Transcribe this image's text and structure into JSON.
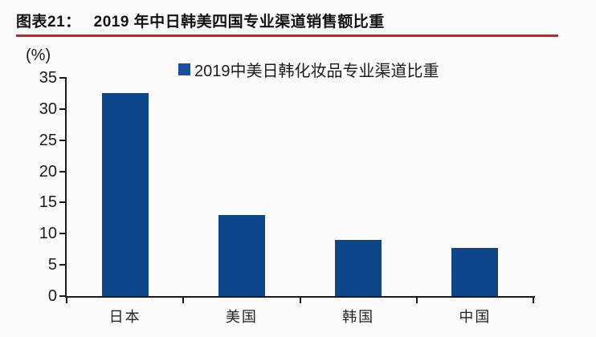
{
  "header": {
    "figure_label": "图表21：",
    "title": "2019 年中日韩美四国专业渠道销售额比重"
  },
  "colors": {
    "bar": "#0E4789",
    "swatch": "#1A4E9E",
    "rule": "#C8241C",
    "axis": "#1A1A1A"
  },
  "chart_data": {
    "type": "bar",
    "title": "2019 年中日韩美四国专业渠道销售额比重",
    "legend": "2019中美日韩化妆品专业渠道比重",
    "unit_label": "(%)",
    "categories": [
      "日本",
      "美国",
      "韩国",
      "中国"
    ],
    "values": [
      32.5,
      13.0,
      9.0,
      7.7
    ],
    "ylim": [
      0,
      35
    ],
    "yticks": [
      0,
      5,
      10,
      15,
      20,
      25,
      30,
      35
    ],
    "grid": false,
    "legend_position": "top-center",
    "bar_color": "#0E4789"
  }
}
